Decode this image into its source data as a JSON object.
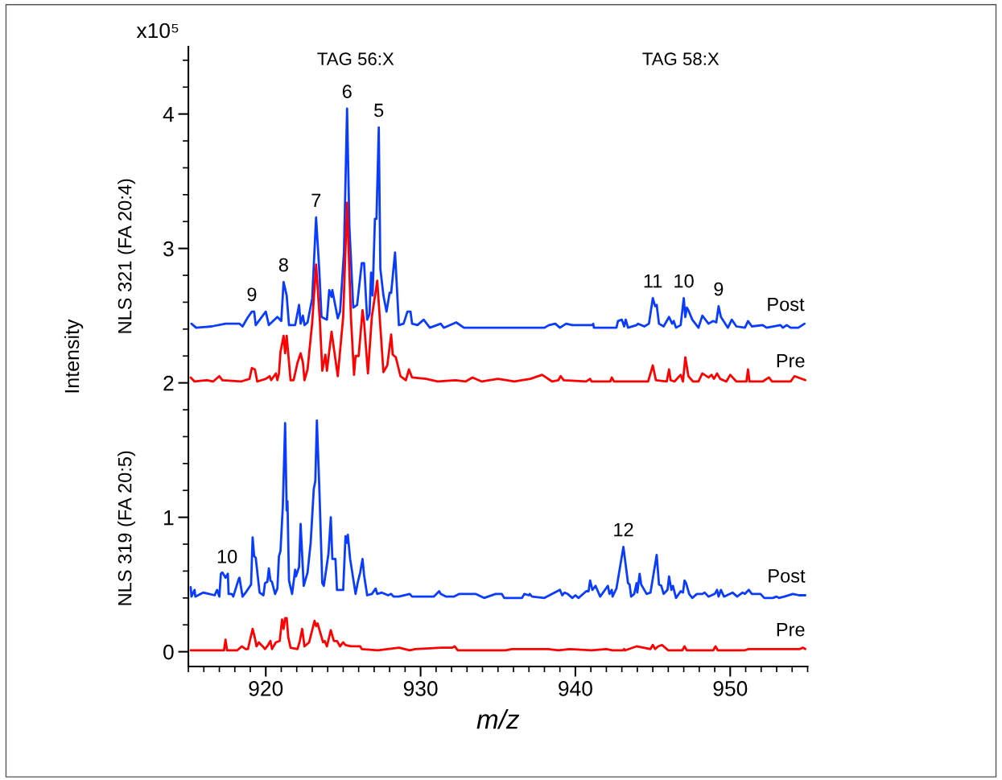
{
  "chart_data": {
    "type": "line",
    "xlabel": "m/z",
    "ylabel": "Intensity",
    "xlim": [
      915,
      955
    ],
    "xticks": [
      920,
      930,
      940,
      950
    ],
    "ylim": [
      -0.11,
      4.5
    ],
    "yticks": [
      0,
      1,
      2,
      3,
      4
    ],
    "grid": false,
    "legend": false,
    "line_style": "solid",
    "marker": "none",
    "annotations": [
      "TAG 56:X",
      "TAG 58:X",
      "NLS 321 (FA 20:4)",
      "NLS 319 (FA 20:5)",
      "x10⁵",
      {
        "text": "9",
        "x": 919.1,
        "y": 2.53
      },
      {
        "text": "8",
        "x": 921.15,
        "y": 2.75
      },
      {
        "text": "7",
        "x": 923.25,
        "y": 3.23
      },
      {
        "text": "6",
        "x": 925.25,
        "y": 4.04
      },
      {
        "text": "5",
        "x": 927.3,
        "y": 3.9
      },
      {
        "text": "11",
        "x": 945.0,
        "y": 2.63
      },
      {
        "text": "10",
        "x": 947.0,
        "y": 2.63
      },
      {
        "text": "9",
        "x": 949.25,
        "y": 2.57
      },
      {
        "text": "10",
        "x": 917.5,
        "y": 0.58
      },
      {
        "text": "12",
        "x": 943.1,
        "y": 0.78
      }
    ],
    "series": [
      {
        "name": "Post",
        "color": "#0a3cff",
        "x": [
          915.2,
          915.5,
          916.5,
          917.4,
          918.3,
          918.5,
          918.8,
          919.1,
          919.25,
          919.35,
          920.0,
          920.2,
          920.75,
          921.0,
          921.15,
          921.35,
          921.5,
          921.9,
          922.15,
          922.25,
          922.4,
          922.5,
          922.7,
          923.0,
          923.25,
          923.45,
          923.6,
          923.95,
          924.1,
          924.25,
          924.3,
          924.65,
          924.8,
          925.05,
          925.25,
          925.4,
          925.65,
          925.9,
          926.2,
          926.35,
          926.55,
          926.7,
          926.8,
          926.9,
          927.05,
          927.15,
          927.3,
          927.4,
          927.6,
          927.8,
          928.0,
          928.1,
          928.35,
          928.6,
          928.9,
          929.15,
          929.35,
          929.45,
          929.8,
          930.2,
          930.6,
          931.3,
          931.5,
          932.3,
          932.8,
          938.0,
          938.3,
          938.7,
          939.0,
          939.4,
          939.8,
          941.1,
          941.15,
          941.2,
          942.25,
          942.65,
          942.75,
          943.0,
          943.15,
          943.25,
          943.4,
          943.95,
          944.05,
          944.45,
          944.75,
          945.0,
          945.15,
          945.25,
          945.4,
          945.7,
          946.05,
          946.25,
          946.35,
          946.5,
          946.8,
          947.0,
          947.1,
          947.2,
          947.3,
          947.55,
          947.95,
          948.2,
          948.6,
          948.9,
          949.1,
          949.25,
          949.4,
          949.85,
          950.1,
          950.4,
          950.95,
          951.15,
          951.4,
          952.1,
          952.35,
          953.25,
          953.4,
          953.65,
          953.9,
          954.4,
          954.8
        ],
        "values": [
          2.44,
          2.41,
          2.42,
          2.44,
          2.44,
          2.42,
          2.48,
          2.53,
          2.53,
          2.43,
          2.53,
          2.43,
          2.49,
          2.46,
          2.75,
          2.65,
          2.43,
          2.43,
          2.58,
          2.44,
          2.5,
          2.43,
          2.45,
          2.63,
          3.23,
          2.85,
          2.49,
          2.47,
          2.69,
          2.64,
          2.69,
          2.48,
          2.53,
          2.97,
          4.04,
          3.17,
          2.56,
          2.58,
          2.89,
          2.89,
          2.47,
          2.51,
          2.82,
          2.65,
          3.22,
          3.22,
          3.9,
          2.85,
          2.65,
          2.53,
          2.67,
          2.67,
          2.97,
          2.43,
          2.44,
          2.53,
          2.53,
          2.44,
          2.43,
          2.47,
          2.41,
          2.44,
          2.41,
          2.45,
          2.41,
          2.41,
          2.43,
          2.44,
          2.41,
          2.44,
          2.43,
          2.43,
          2.44,
          2.41,
          2.41,
          2.41,
          2.46,
          2.47,
          2.42,
          2.47,
          2.41,
          2.43,
          2.44,
          2.42,
          2.44,
          2.63,
          2.57,
          2.58,
          2.44,
          2.42,
          2.49,
          2.44,
          2.46,
          2.41,
          2.43,
          2.63,
          2.49,
          2.56,
          2.54,
          2.47,
          2.41,
          2.5,
          2.44,
          2.46,
          2.45,
          2.57,
          2.49,
          2.41,
          2.47,
          2.42,
          2.41,
          2.46,
          2.42,
          2.43,
          2.41,
          2.43,
          2.41,
          2.43,
          2.41,
          2.41,
          2.44
        ]
      },
      {
        "name": "Pre",
        "color": "#ff0000",
        "x": [
          915.15,
          915.4,
          916.2,
          916.6,
          917.0,
          917.2,
          918.4,
          918.95,
          919.1,
          919.3,
          919.45,
          920.0,
          920.25,
          920.35,
          920.65,
          920.75,
          920.85,
          920.95,
          921.15,
          921.25,
          921.35,
          921.6,
          921.8,
          922.05,
          922.25,
          922.4,
          922.5,
          922.7,
          923.0,
          923.25,
          923.5,
          923.65,
          923.85,
          923.95,
          924.25,
          924.65,
          925.0,
          925.25,
          925.5,
          925.7,
          925.8,
          926.0,
          926.25,
          926.35,
          926.6,
          926.85,
          927.2,
          927.6,
          927.85,
          928.1,
          928.2,
          928.4,
          928.7,
          929.05,
          929.25,
          929.45,
          930.35,
          931.1,
          932.25,
          932.9,
          933.35,
          933.95,
          935.0,
          936.05,
          937.1,
          937.85,
          938.5,
          938.9,
          939.05,
          939.25,
          940.7,
          940.95,
          941.05,
          942.25,
          942.35,
          942.5,
          944.7,
          945.0,
          945.2,
          945.9,
          946.05,
          946.15,
          946.4,
          946.8,
          946.95,
          947.1,
          947.3,
          947.6,
          947.95,
          948.2,
          948.6,
          948.8,
          948.95,
          949.15,
          949.35,
          949.75,
          950.0,
          950.4,
          951.05,
          951.15,
          951.25,
          952.1,
          952.5,
          952.7,
          953.9,
          954.15,
          954.85
        ],
        "values": [
          2.04,
          2.01,
          2.02,
          2.01,
          2.05,
          2.02,
          2.01,
          2.03,
          2.11,
          2.1,
          2.01,
          2.03,
          2.05,
          2.02,
          2.07,
          2.02,
          2.07,
          2.23,
          2.35,
          2.22,
          2.35,
          2.02,
          2.02,
          2.15,
          2.22,
          2.15,
          2.02,
          2.1,
          2.45,
          2.88,
          2.45,
          2.09,
          2.21,
          2.09,
          2.38,
          2.05,
          2.49,
          3.34,
          2.49,
          2.06,
          2.2,
          2.2,
          2.54,
          2.45,
          2.07,
          2.49,
          2.76,
          2.08,
          2.13,
          2.36,
          2.21,
          2.19,
          2.05,
          2.02,
          2.1,
          2.04,
          2.03,
          2.01,
          2.02,
          2.01,
          2.04,
          2.01,
          2.03,
          2.01,
          2.03,
          2.06,
          2.01,
          2.02,
          2.05,
          2.02,
          2.01,
          2.03,
          2.01,
          2.01,
          2.04,
          2.01,
          2.01,
          2.13,
          2.02,
          2.01,
          2.1,
          2.02,
          2.01,
          2.06,
          2.01,
          2.19,
          2.05,
          2.01,
          2.01,
          2.07,
          2.04,
          2.06,
          2.03,
          2.07,
          2.03,
          2.01,
          2.06,
          2.01,
          2.01,
          2.1,
          2.01,
          2.01,
          2.04,
          2.01,
          2.01,
          2.05,
          2.02
        ]
      },
      {
        "name": "Post",
        "color": "#0a3cff",
        "x": [
          915.15,
          915.2,
          915.4,
          915.45,
          915.95,
          916.7,
          916.85,
          917.0,
          917.1,
          917.2,
          917.4,
          917.55,
          917.6,
          917.8,
          917.9,
          918.25,
          918.3,
          918.5,
          918.7,
          919.05,
          919.15,
          919.25,
          919.35,
          919.6,
          919.85,
          919.95,
          920.1,
          920.2,
          920.3,
          920.4,
          920.6,
          920.75,
          920.85,
          920.95,
          921.1,
          921.25,
          921.35,
          921.4,
          921.5,
          921.7,
          921.9,
          921.95,
          922.15,
          922.25,
          922.45,
          922.7,
          922.9,
          923.1,
          923.2,
          923.3,
          923.45,
          923.65,
          923.75,
          924.05,
          924.2,
          924.3,
          924.5,
          924.6,
          924.8,
          925.0,
          925.15,
          925.25,
          925.3,
          925.45,
          925.8,
          925.95,
          926.1,
          926.25,
          926.35,
          926.55,
          926.85,
          927.1,
          927.2,
          927.5,
          927.9,
          928.1,
          928.25,
          928.6,
          929.3,
          929.45,
          930.85,
          931.2,
          931.3,
          931.65,
          932.15,
          932.5,
          933.55,
          934.1,
          934.85,
          935.25,
          935.4,
          936.55,
          936.7,
          937.0,
          937.05,
          937.2,
          938.0,
          939.0,
          939.15,
          939.3,
          939.5,
          939.8,
          940.0,
          940.2,
          940.7,
          940.85,
          940.95,
          941.1,
          941.3,
          941.6,
          942.1,
          942.2,
          942.35,
          942.4,
          942.65,
          943.1,
          943.4,
          943.5,
          943.6,
          943.8,
          943.95,
          944.0,
          944.15,
          944.25,
          944.6,
          944.85,
          945.25,
          945.4,
          945.55,
          945.7,
          945.95,
          946.05,
          946.2,
          946.3,
          946.5,
          946.8,
          946.95,
          947.05,
          947.15,
          947.35,
          947.55,
          947.85,
          948.2,
          948.35,
          948.6,
          949.0,
          949.15,
          949.25,
          949.4,
          949.6,
          950.15,
          950.45,
          950.8,
          950.95,
          951.2,
          951.4,
          951.95,
          952.2,
          952.75,
          953.0,
          953.15,
          953.5,
          954.05,
          954.45,
          954.85
        ],
        "values": [
          0.48,
          0.41,
          0.46,
          0.41,
          0.44,
          0.42,
          0.46,
          0.41,
          0.58,
          0.59,
          0.55,
          0.58,
          0.43,
          0.43,
          0.41,
          0.54,
          0.55,
          0.41,
          0.44,
          0.5,
          0.85,
          0.71,
          0.7,
          0.44,
          0.42,
          0.51,
          0.52,
          0.62,
          0.53,
          0.52,
          0.43,
          0.47,
          0.71,
          0.75,
          1.08,
          1.7,
          1.05,
          1.12,
          0.53,
          0.43,
          0.61,
          0.56,
          0.63,
          0.95,
          0.49,
          0.59,
          0.81,
          1.21,
          1.27,
          1.72,
          1.25,
          0.51,
          0.49,
          0.73,
          1.0,
          0.69,
          0.69,
          0.46,
          0.46,
          0.46,
          0.86,
          0.81,
          0.87,
          0.69,
          0.43,
          0.52,
          0.59,
          0.69,
          0.57,
          0.42,
          0.43,
          0.47,
          0.43,
          0.44,
          0.42,
          0.43,
          0.41,
          0.41,
          0.43,
          0.41,
          0.41,
          0.45,
          0.43,
          0.41,
          0.41,
          0.43,
          0.43,
          0.4,
          0.43,
          0.43,
          0.4,
          0.4,
          0.43,
          0.42,
          0.43,
          0.41,
          0.4,
          0.46,
          0.42,
          0.44,
          0.43,
          0.4,
          0.42,
          0.4,
          0.45,
          0.45,
          0.53,
          0.46,
          0.49,
          0.41,
          0.49,
          0.43,
          0.46,
          0.41,
          0.47,
          0.78,
          0.51,
          0.5,
          0.41,
          0.43,
          0.51,
          0.44,
          0.58,
          0.5,
          0.43,
          0.44,
          0.72,
          0.5,
          0.49,
          0.43,
          0.46,
          0.56,
          0.46,
          0.49,
          0.4,
          0.45,
          0.44,
          0.53,
          0.51,
          0.43,
          0.4,
          0.43,
          0.43,
          0.44,
          0.41,
          0.43,
          0.46,
          0.41,
          0.46,
          0.41,
          0.44,
          0.41,
          0.44,
          0.43,
          0.46,
          0.43,
          0.43,
          0.4,
          0.4,
          0.41,
          0.4,
          0.41,
          0.43,
          0.42,
          0.42
        ]
      },
      {
        "name": "Pre",
        "color": "#ff0000",
        "x": [
          915.15,
          916.45,
          917.3,
          917.4,
          917.5,
          918.15,
          918.45,
          918.7,
          918.85,
          918.95,
          919.15,
          919.3,
          919.4,
          919.55,
          919.8,
          919.95,
          920.15,
          920.3,
          920.4,
          920.65,
          920.9,
          921.05,
          921.15,
          921.25,
          921.35,
          921.45,
          921.6,
          922.05,
          922.2,
          922.35,
          922.5,
          922.8,
          923.15,
          923.25,
          923.35,
          923.7,
          923.8,
          923.95,
          924.2,
          924.4,
          924.6,
          924.8,
          925.0,
          925.15,
          925.5,
          926.1,
          926.2,
          927.25,
          928.6,
          929.3,
          929.65,
          931.35,
          932.05,
          932.2,
          932.4,
          932.75,
          935.5,
          935.9,
          938.25,
          938.9,
          939.65,
          941.05,
          942.0,
          942.4,
          943.05,
          943.15,
          943.2,
          943.95,
          944.85,
          945.0,
          945.15,
          945.35,
          945.6,
          945.8,
          946.0,
          946.9,
          947.05,
          947.2,
          948.9,
          949.05,
          949.2,
          950.7,
          950.9,
          951.2,
          954.5,
          954.7,
          954.85
        ],
        "values": [
          0.01,
          0.01,
          0.01,
          0.09,
          0.01,
          0.01,
          0.04,
          0.02,
          0.02,
          0.07,
          0.17,
          0.1,
          0.04,
          0.07,
          0.04,
          0.02,
          0.05,
          0.08,
          0.02,
          0.07,
          0.08,
          0.24,
          0.17,
          0.25,
          0.25,
          0.11,
          0.03,
          0.02,
          0.08,
          0.17,
          0.04,
          0.07,
          0.23,
          0.19,
          0.21,
          0.07,
          0.08,
          0.04,
          0.16,
          0.08,
          0.08,
          0.04,
          0.07,
          0.05,
          0.04,
          0.04,
          0.02,
          0.01,
          0.03,
          0.01,
          0.02,
          0.03,
          0.03,
          0.04,
          0.01,
          0.01,
          0.01,
          0.02,
          0.02,
          0.01,
          0.02,
          0.01,
          0.02,
          0.01,
          0.01,
          0.02,
          0.01,
          0.04,
          0.02,
          0.05,
          0.02,
          0.04,
          0.05,
          0.03,
          0.01,
          0.01,
          0.04,
          0.01,
          0.01,
          0.04,
          0.01,
          0.01,
          0.01,
          0.02,
          0.02,
          0.03,
          0.02
        ]
      }
    ]
  }
}
